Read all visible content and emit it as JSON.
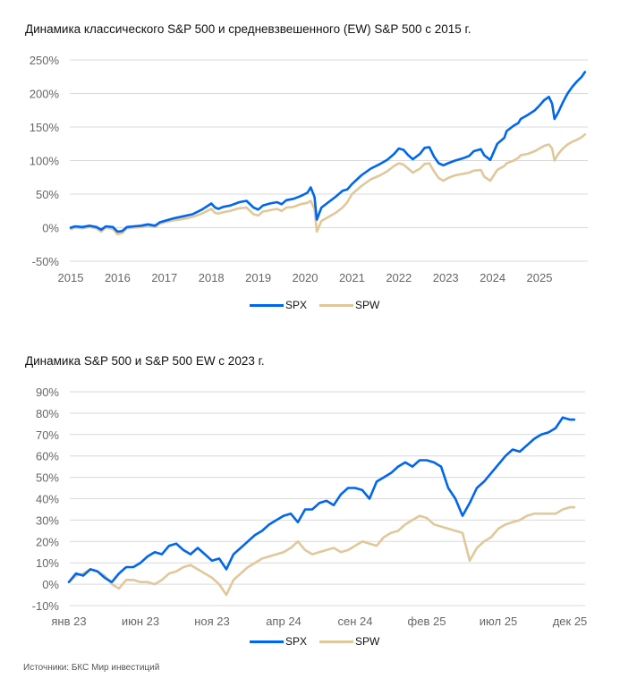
{
  "colors": {
    "spx": "#0066EE",
    "spw": "#E1C89A",
    "grid": "#D9D9D9"
  },
  "source": "Источники: БКС Мир инвестиций",
  "chart_data": [
    {
      "type": "line",
      "title": "Динамика классического S&P 500 и средневзвешенного (EW) S&P 500 с 2015 г.",
      "xlabel": "",
      "ylabel": "",
      "xlim": [
        2015,
        2026.05
      ],
      "ylim": [
        -50,
        250
      ],
      "yticks": [
        250,
        200,
        150,
        100,
        50,
        0,
        -50
      ],
      "ytick_labels": [
        "250%",
        "200%",
        "150%",
        "100%",
        "50%",
        "0%",
        "-50%"
      ],
      "xticks": [
        2015,
        2016,
        2017,
        2018,
        2019,
        2020,
        2021,
        2022,
        2023,
        2024,
        2025
      ],
      "xtick_labels": [
        "2015",
        "2016",
        "2017",
        "2018",
        "2019",
        "2020",
        "2021",
        "2022",
        "2023",
        "2024",
        "2025"
      ],
      "grid": true,
      "legend": "bottom-center",
      "series": [
        {
          "name": "SPX",
          "x": [
            2015,
            2015.1,
            2015.25,
            2015.4,
            2015.55,
            2015.65,
            2015.75,
            2015.9,
            2016.0,
            2016.1,
            2016.2,
            2016.35,
            2016.5,
            2016.65,
            2016.8,
            2016.9,
            2017.0,
            2017.2,
            2017.4,
            2017.6,
            2017.8,
            2018.0,
            2018.08,
            2018.15,
            2018.25,
            2018.4,
            2018.6,
            2018.75,
            2018.9,
            2019.0,
            2019.1,
            2019.25,
            2019.4,
            2019.5,
            2019.6,
            2019.75,
            2019.9,
            2020.05,
            2020.12,
            2020.2,
            2020.25,
            2020.35,
            2020.5,
            2020.65,
            2020.8,
            2020.9,
            2021.0,
            2021.2,
            2021.4,
            2021.6,
            2021.75,
            2021.9,
            2022.0,
            2022.1,
            2022.2,
            2022.3,
            2022.45,
            2022.55,
            2022.65,
            2022.75,
            2022.85,
            2022.95,
            2023.05,
            2023.2,
            2023.35,
            2023.5,
            2023.6,
            2023.75,
            2023.82,
            2023.95,
            2024.1,
            2024.25,
            2024.3,
            2024.45,
            2024.55,
            2024.6,
            2024.75,
            2024.9,
            2025.0,
            2025.1,
            2025.2,
            2025.27,
            2025.32,
            2025.4,
            2025.5,
            2025.6,
            2025.7,
            2025.8,
            2025.9,
            2025.97
          ],
          "y": [
            0,
            2,
            1,
            3,
            1,
            -3,
            2,
            1,
            -6,
            -5,
            1,
            2,
            3,
            5,
            3,
            8,
            10,
            14,
            17,
            20,
            27,
            36,
            30,
            28,
            31,
            33,
            38,
            40,
            30,
            27,
            33,
            36,
            38,
            35,
            41,
            43,
            47,
            52,
            60,
            46,
            12,
            30,
            38,
            46,
            55,
            57,
            65,
            78,
            88,
            95,
            101,
            110,
            118,
            116,
            108,
            102,
            110,
            119,
            120,
            106,
            96,
            93,
            96,
            100,
            103,
            107,
            114,
            117,
            108,
            101,
            125,
            134,
            144,
            152,
            156,
            162,
            168,
            175,
            182,
            190,
            195,
            185,
            162,
            172,
            187,
            200,
            210,
            218,
            225,
            232
          ]
        },
        {
          "name": "SPW",
          "x": [
            2015,
            2015.1,
            2015.25,
            2015.4,
            2015.55,
            2015.65,
            2015.75,
            2015.9,
            2016.0,
            2016.1,
            2016.2,
            2016.35,
            2016.5,
            2016.65,
            2016.8,
            2016.9,
            2017.0,
            2017.2,
            2017.4,
            2017.6,
            2017.8,
            2018.0,
            2018.08,
            2018.15,
            2018.25,
            2018.4,
            2018.6,
            2018.75,
            2018.9,
            2019.0,
            2019.1,
            2019.25,
            2019.4,
            2019.5,
            2019.6,
            2019.75,
            2019.9,
            2020.05,
            2020.12,
            2020.2,
            2020.25,
            2020.35,
            2020.5,
            2020.65,
            2020.8,
            2020.9,
            2021.0,
            2021.2,
            2021.4,
            2021.6,
            2021.75,
            2021.9,
            2022.0,
            2022.1,
            2022.2,
            2022.3,
            2022.45,
            2022.55,
            2022.65,
            2022.75,
            2022.85,
            2022.95,
            2023.05,
            2023.2,
            2023.35,
            2023.5,
            2023.6,
            2023.75,
            2023.82,
            2023.95,
            2024.1,
            2024.25,
            2024.3,
            2024.45,
            2024.55,
            2024.6,
            2024.75,
            2024.9,
            2025.0,
            2025.1,
            2025.2,
            2025.27,
            2025.32,
            2025.4,
            2025.5,
            2025.6,
            2025.7,
            2025.8,
            2025.9,
            2025.97
          ],
          "y": [
            -2,
            0,
            -1,
            1,
            -1,
            -6,
            0,
            -2,
            -10,
            -8,
            -1,
            0,
            1,
            3,
            1,
            6,
            8,
            11,
            13,
            16,
            21,
            28,
            22,
            21,
            23,
            25,
            29,
            30,
            20,
            18,
            24,
            26,
            28,
            25,
            30,
            31,
            35,
            37,
            40,
            28,
            -6,
            10,
            16,
            22,
            30,
            38,
            50,
            62,
            72,
            78,
            84,
            92,
            96,
            94,
            88,
            82,
            88,
            95,
            96,
            84,
            74,
            70,
            74,
            78,
            80,
            82,
            85,
            86,
            76,
            70,
            86,
            92,
            96,
            100,
            104,
            108,
            110,
            114,
            118,
            122,
            124,
            118,
            100,
            110,
            118,
            124,
            128,
            131,
            135,
            139
          ]
        }
      ]
    },
    {
      "type": "line",
      "title": "Динамика S&P 500 и S&P 500 EW с 2023 г.",
      "xlabel": "",
      "ylabel": "",
      "x_unit": "months since Jan 2023",
      "xlim": [
        0,
        36
      ],
      "ylim": [
        -10,
        90
      ],
      "yticks": [
        90,
        80,
        70,
        60,
        50,
        40,
        30,
        20,
        10,
        0,
        -10
      ],
      "ytick_labels": [
        "90%",
        "80%",
        "70%",
        "60%",
        "50%",
        "40%",
        "30%",
        "20%",
        "10%",
        "0%",
        "-10%"
      ],
      "xticks": [
        0,
        5,
        10,
        15,
        20,
        25,
        30,
        35
      ],
      "xtick_labels": [
        "янв 23",
        "июн 23",
        "ноя 23",
        "апр 24",
        "сен 24",
        "фев 25",
        "июл 25",
        "дек 25"
      ],
      "grid": true,
      "legend": "bottom-center",
      "series": [
        {
          "name": "SPX",
          "x": [
            0,
            0.5,
            1,
            1.5,
            2,
            2.5,
            3,
            3.5,
            4,
            4.5,
            5,
            5.5,
            6,
            6.5,
            7,
            7.5,
            8,
            8.5,
            9,
            9.5,
            10,
            10.5,
            11,
            11.5,
            12,
            12.5,
            13,
            13.5,
            14,
            14.5,
            15,
            15.5,
            16,
            16.5,
            17,
            17.5,
            18,
            18.5,
            19,
            19.5,
            20,
            20.5,
            21,
            21.5,
            22,
            22.5,
            23,
            23.5,
            24,
            24.5,
            25,
            25.5,
            26,
            26.5,
            27,
            27.5,
            28,
            28.5,
            29,
            29.5,
            30,
            30.5,
            31,
            31.5,
            32,
            32.5,
            33,
            33.5,
            34,
            34.5,
            35,
            35.3
          ],
          "y": [
            1,
            5,
            4,
            7,
            6,
            3,
            1,
            5,
            8,
            8,
            10,
            13,
            15,
            14,
            18,
            19,
            16,
            14,
            17,
            14,
            11,
            12,
            7,
            14,
            17,
            20,
            23,
            25,
            28,
            30,
            32,
            33,
            29,
            35,
            35,
            38,
            39,
            37,
            42,
            45,
            45,
            44,
            40,
            48,
            50,
            52,
            55,
            57,
            55,
            58,
            58,
            57,
            55,
            45,
            40,
            32,
            38,
            45,
            48,
            52,
            56,
            60,
            63,
            62,
            65,
            68,
            70,
            71,
            73,
            78,
            77,
            77
          ]
        },
        {
          "name": "SPW",
          "x": [
            0,
            0.5,
            1,
            1.5,
            2,
            2.5,
            3,
            3.5,
            4,
            4.5,
            5,
            5.5,
            6,
            6.5,
            7,
            7.5,
            8,
            8.5,
            9,
            9.5,
            10,
            10.5,
            11,
            11.5,
            12,
            12.5,
            13,
            13.5,
            14,
            14.5,
            15,
            15.5,
            16,
            16.5,
            17,
            17.5,
            18,
            18.5,
            19,
            19.5,
            20,
            20.5,
            21,
            21.5,
            22,
            22.5,
            23,
            23.5,
            24,
            24.5,
            25,
            25.5,
            26,
            26.5,
            27,
            27.5,
            28,
            28.5,
            29,
            29.5,
            30,
            30.5,
            31,
            31.5,
            32,
            32.5,
            33,
            33.5,
            34,
            34.5,
            35,
            35.3
          ],
          "y": [
            1,
            4,
            5,
            7,
            6,
            4,
            0,
            -2,
            2,
            2,
            1,
            1,
            0,
            2,
            5,
            6,
            8,
            9,
            7,
            5,
            3,
            0,
            -5,
            2,
            5,
            8,
            10,
            12,
            13,
            14,
            15,
            17,
            20,
            16,
            14,
            15,
            16,
            17,
            15,
            16,
            18,
            20,
            19,
            18,
            22,
            24,
            25,
            28,
            30,
            32,
            31,
            28,
            27,
            26,
            25,
            24,
            11,
            17,
            20,
            22,
            26,
            28,
            29,
            30,
            32,
            33,
            33,
            33,
            33,
            35,
            36,
            36
          ]
        }
      ]
    }
  ]
}
